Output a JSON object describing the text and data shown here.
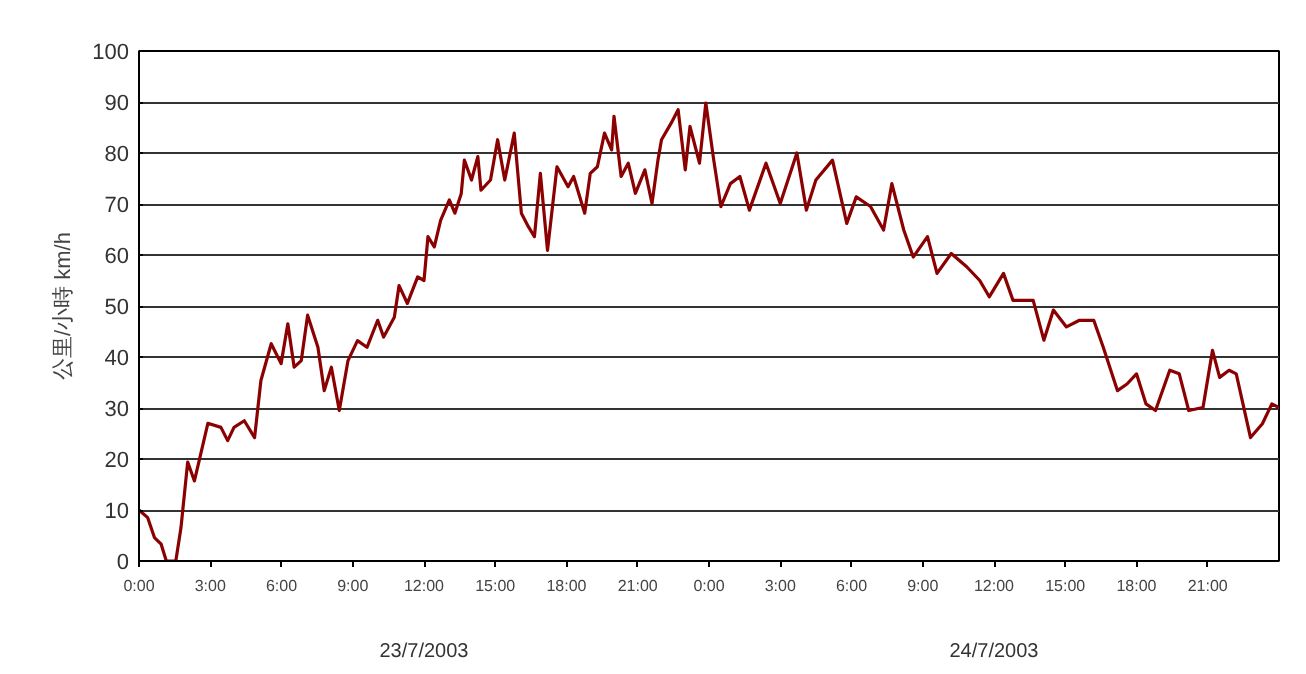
{
  "chart_data": {
    "type": "line",
    "ylabel": "公里/小時 km/h",
    "annotations": [
      "23/7/2003",
      "24/7/2003"
    ],
    "xlim": [
      "2003-07-23T00:00",
      "2003-07-25T00:00"
    ],
    "ylim": [
      0,
      100
    ],
    "xticks": [
      {
        "value": "2003-07-23T00:00",
        "label": "0:00"
      },
      {
        "value": "2003-07-23T03:00",
        "label": "3:00"
      },
      {
        "value": "2003-07-23T06:00",
        "label": "6:00"
      },
      {
        "value": "2003-07-23T09:00",
        "label": "9:00"
      },
      {
        "value": "2003-07-23T12:00",
        "label": "12:00"
      },
      {
        "value": "2003-07-23T15:00",
        "label": "15:00"
      },
      {
        "value": "2003-07-23T18:00",
        "label": "18:00"
      },
      {
        "value": "2003-07-23T21:00",
        "label": "21:00"
      },
      {
        "value": "2003-07-24T00:00",
        "label": "0:00"
      },
      {
        "value": "2003-07-24T03:00",
        "label": "3:00"
      },
      {
        "value": "2003-07-24T06:00",
        "label": "6:00"
      },
      {
        "value": "2003-07-24T09:00",
        "label": "9:00"
      },
      {
        "value": "2003-07-24T12:00",
        "label": "12:00"
      },
      {
        "value": "2003-07-24T15:00",
        "label": "15:00"
      },
      {
        "value": "2003-07-24T18:00",
        "label": "18:00"
      },
      {
        "value": "2003-07-24T21:00",
        "label": "21:00"
      }
    ],
    "yticks": [
      0,
      10,
      20,
      30,
      40,
      50,
      60,
      70,
      80,
      90,
      100
    ],
    "grid": "y",
    "marker": "none",
    "line_style": "solid",
    "x": [
      "2003-07-23T00:00",
      "2003-07-23T00:22",
      "2003-07-23T00:39",
      "2003-07-23T00:56",
      "2003-07-23T01:09",
      "2003-07-23T01:33",
      "2003-07-23T01:46",
      "2003-07-23T02:03",
      "2003-07-23T02:20",
      "2003-07-23T02:36",
      "2003-07-23T02:54",
      "2003-07-23T03:27",
      "2003-07-23T03:44",
      "2003-07-23T04:00",
      "2003-07-23T04:26",
      "2003-07-23T04:52",
      "2003-07-23T05:08",
      "2003-07-23T05:34",
      "2003-07-23T05:59",
      "2003-07-23T06:16",
      "2003-07-23T06:32",
      "2003-07-23T06:50",
      "2003-07-23T07:06",
      "2003-07-23T07:32",
      "2003-07-23T07:48",
      "2003-07-23T08:06",
      "2003-07-23T08:26",
      "2003-07-23T08:48",
      "2003-07-23T09:12",
      "2003-07-23T09:36",
      "2003-07-23T10:03",
      "2003-07-23T10:18",
      "2003-07-23T10:45",
      "2003-07-23T10:57",
      "2003-07-23T11:18",
      "2003-07-23T11:44",
      "2003-07-23T12:00",
      "2003-07-23T12:10",
      "2003-07-23T12:26",
      "2003-07-23T12:42",
      "2003-07-23T13:04",
      "2003-07-23T13:18",
      "2003-07-23T13:34",
      "2003-07-23T13:42",
      "2003-07-23T14:00",
      "2003-07-23T14:16",
      "2003-07-23T14:24",
      "2003-07-23T14:48",
      "2003-07-23T15:06",
      "2003-07-23T15:24",
      "2003-07-23T15:48",
      "2003-07-23T16:06",
      "2003-07-23T16:24",
      "2003-07-23T16:39",
      "2003-07-23T16:54",
      "2003-07-23T17:12",
      "2003-07-23T17:36",
      "2003-07-23T18:04",
      "2003-07-23T18:18",
      "2003-07-23T18:46",
      "2003-07-23T19:00",
      "2003-07-23T19:18",
      "2003-07-23T19:36",
      "2003-07-23T19:54",
      "2003-07-23T20:00",
      "2003-07-23T20:18",
      "2003-07-23T20:36",
      "2003-07-23T20:54",
      "2003-07-23T21:18",
      "2003-07-23T21:36",
      "2003-07-23T21:51",
      "2003-07-23T22:00",
      "2003-07-23T22:24",
      "2003-07-23T22:42",
      "2003-07-23T23:00",
      "2003-07-23T23:12",
      "2003-07-23T23:36",
      "2003-07-23T23:52",
      "2003-07-24T00:12",
      "2003-07-24T00:30",
      "2003-07-24T00:54",
      "2003-07-24T01:18",
      "2003-07-24T01:42",
      "2003-07-24T02:24",
      "2003-07-24T03:00",
      "2003-07-24T03:42",
      "2003-07-24T04:06",
      "2003-07-24T04:30",
      "2003-07-24T05:12",
      "2003-07-24T05:48",
      "2003-07-24T06:12",
      "2003-07-24T06:48",
      "2003-07-24T07:21",
      "2003-07-24T07:42",
      "2003-07-24T08:12",
      "2003-07-24T08:36",
      "2003-07-24T09:12",
      "2003-07-24T09:36",
      "2003-07-24T10:12",
      "2003-07-24T10:51",
      "2003-07-24T11:24",
      "2003-07-24T11:48",
      "2003-07-24T12:24",
      "2003-07-24T12:48",
      "2003-07-24T13:39",
      "2003-07-24T14:06",
      "2003-07-24T14:30",
      "2003-07-24T15:03",
      "2003-07-24T15:36",
      "2003-07-24T16:12",
      "2003-07-24T16:36",
      "2003-07-24T17:12",
      "2003-07-24T17:36",
      "2003-07-24T18:00",
      "2003-07-24T18:24",
      "2003-07-24T18:48",
      "2003-07-24T19:24",
      "2003-07-24T19:48",
      "2003-07-24T20:12",
      "2003-07-24T20:48",
      "2003-07-24T21:12",
      "2003-07-24T21:30",
      "2003-07-24T21:54",
      "2003-07-24T22:12",
      "2003-07-24T22:48",
      "2003-07-24T23:18",
      "2003-07-24T23:42",
      "2003-07-25T00:00"
    ],
    "series": [
      {
        "color": "#8b0000",
        "values": [
          10,
          8.5,
          4.6,
          3.3,
          0,
          0,
          6.5,
          19.4,
          15.7,
          21,
          27,
          26.2,
          23.6,
          26.2,
          27.5,
          24.2,
          35.4,
          42.6,
          38.7,
          46.5,
          38,
          39.3,
          48.2,
          41.9,
          33.4,
          38,
          29.5,
          39.3,
          43.2,
          41.9,
          47.2,
          43.9,
          47.8,
          54,
          50.5,
          55.7,
          55,
          63.6,
          61.6,
          66.8,
          70.8,
          68.2,
          72,
          78.6,
          74.7,
          79.3,
          72.7,
          74.7,
          82.6,
          74.7,
          83.9,
          68.2,
          65.5,
          63.6,
          76,
          60.9,
          77.3,
          73.4,
          75.4,
          68.2,
          76,
          77.3,
          83.9,
          80.6,
          87.2,
          75.4,
          78,
          72.1,
          76.7,
          70.1,
          78.6,
          82.6,
          85.8,
          88.5,
          76.7,
          85.2,
          78,
          89.8,
          78.6,
          69.5,
          74,
          75.4,
          68.8,
          78,
          70.1,
          80,
          68.8,
          74.7,
          78.6,
          66.2,
          71.4,
          69.5,
          64.9,
          74,
          64.9,
          59.6,
          63.6,
          56.4,
          60.3,
          57.7,
          55,
          51.8,
          56.4,
          51.1,
          51.1,
          43.3,
          49.2,
          45.9,
          47.2,
          47.2,
          41.9,
          33.4,
          34.7,
          36.7,
          30.8,
          29.5,
          37.4,
          36.7,
          29.5,
          30.1,
          41.3,
          36,
          37.4,
          36.7,
          24.2,
          26.9,
          30.8,
          30.1
        ]
      }
    ]
  }
}
